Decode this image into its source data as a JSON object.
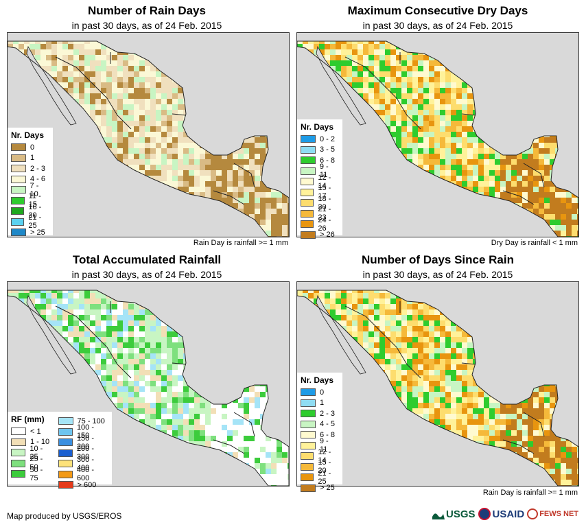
{
  "panels": [
    {
      "title": "Number of Rain Days",
      "subtitle": "in past 30 days, as of 24 Feb. 2015",
      "note": "Rain Day is rainfall >= 1 mm",
      "legend_title": "Nr. Days",
      "legend": [
        {
          "label": "0",
          "color": "#b5893e"
        },
        {
          "label": "1",
          "color": "#d9bb85"
        },
        {
          "label": "2 - 3",
          "color": "#f0e0be"
        },
        {
          "label": "4 - 6",
          "color": "#fbf8d6"
        },
        {
          "label": "7 - 10",
          "color": "#c8f5c3"
        },
        {
          "label": "11 - 15",
          "color": "#2ecc2e"
        },
        {
          "label": "16 - 20",
          "color": "#1fa81f"
        },
        {
          "label": "21 - 25",
          "color": "#5bd1f0"
        },
        {
          "label": "> 25",
          "color": "#1e88c8"
        }
      ]
    },
    {
      "title": "Maximum Consecutive Dry Days",
      "subtitle": "in past 30 days, as of 24 Feb. 2015",
      "note": "Dry Day is rainfall < 1 mm",
      "legend_title": "Nr. Days",
      "legend": [
        {
          "label": "0 - 2",
          "color": "#1e9be6"
        },
        {
          "label": "3 - 5",
          "color": "#8fdcf2"
        },
        {
          "label": "6 - 8",
          "color": "#2ecc2e"
        },
        {
          "label": "9 - 11",
          "color": "#c8f5c3"
        },
        {
          "label": "12 - 14",
          "color": "#fffad0"
        },
        {
          "label": "15 - 17",
          "color": "#fff29a"
        },
        {
          "label": "18 - 20",
          "color": "#fddd6e"
        },
        {
          "label": "21 - 23",
          "color": "#f5b93a"
        },
        {
          "label": "24 - 26",
          "color": "#e8950f"
        },
        {
          "label": "> 26",
          "color": "#c27c1e"
        }
      ]
    },
    {
      "title": "Total Accumulated Rainfall",
      "subtitle": "in past 30 days, as of 24 Feb. 2015",
      "note": "",
      "legend_title": "RF (mm)",
      "legend": [
        {
          "label": "< 1",
          "color": "#ffffff"
        },
        {
          "label": "1 - 10",
          "color": "#f2dfb6"
        },
        {
          "label": "10 - 25",
          "color": "#c8f5c3"
        },
        {
          "label": "25 - 50",
          "color": "#7ee07e"
        },
        {
          "label": "50 - 75",
          "color": "#3ccc3c"
        }
      ],
      "legend2": [
        {
          "label": "75 - 100",
          "color": "#a5e4f7"
        },
        {
          "label": "100 - 150",
          "color": "#6ec4ef"
        },
        {
          "label": "150 - 200",
          "color": "#3a8fe0"
        },
        {
          "label": "200 - 300",
          "color": "#1a5fd0"
        },
        {
          "label": "300 - 400",
          "color": "#fde27a"
        },
        {
          "label": "400 - 600",
          "color": "#f39a16"
        },
        {
          "label": "> 600",
          "color": "#e53a1a"
        }
      ]
    },
    {
      "title": "Number of Days Since Rain",
      "subtitle": "in past 30 days, as of 24 Feb. 2015",
      "note": "Rain Day is rainfall >= 1 mm",
      "legend_title": "Nr. Days",
      "legend": [
        {
          "label": "0",
          "color": "#1e9be6"
        },
        {
          "label": "1",
          "color": "#8fdcf2"
        },
        {
          "label": "2 - 3",
          "color": "#2ecc2e"
        },
        {
          "label": "4 - 5",
          "color": "#c8f5c3"
        },
        {
          "label": "6 - 8",
          "color": "#fffad0"
        },
        {
          "label": "9 - 11",
          "color": "#fff29a"
        },
        {
          "label": "12 - 14",
          "color": "#fddd6e"
        },
        {
          "label": "15 - 20",
          "color": "#f5b93a"
        },
        {
          "label": "21 - 25",
          "color": "#e8950f"
        },
        {
          "label": "> 25",
          "color": "#c27c1e"
        }
      ]
    }
  ],
  "colors": {
    "ocean": "#d9d9d9",
    "border": "#222222"
  },
  "footer": "Map produced by USGS/EROS",
  "logos": {
    "usgs": "USGS",
    "usaid": "USAID",
    "fews": "FEWS NET"
  }
}
